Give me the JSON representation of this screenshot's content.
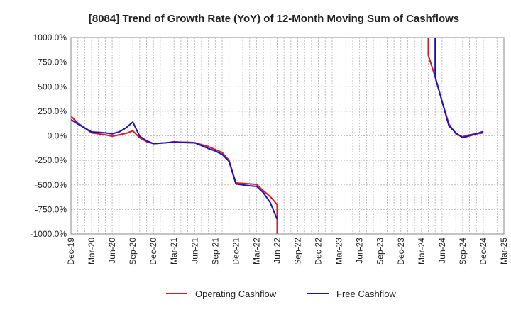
{
  "chart_data": {
    "type": "line",
    "title": "[8084]  Trend of Growth Rate (YoY) of 12-Month Moving Sum of Cashflows",
    "xlabel": "",
    "ylabel": "",
    "ylim": [
      -1000,
      1000
    ],
    "y_ticks": [
      1000,
      750,
      500,
      250,
      0,
      -250,
      -500,
      -750,
      -1000
    ],
    "y_tick_labels": [
      "1000.0%",
      "750.0%",
      "500.0%",
      "250.0%",
      "0.0%",
      "-250.0%",
      "-500.0%",
      "-750.0%",
      "-1000.0%"
    ],
    "x_tick_labels": [
      "Dec-19",
      "Mar-20",
      "Jun-20",
      "Sep-20",
      "Dec-20",
      "Mar-21",
      "Jun-21",
      "Sep-21",
      "Dec-21",
      "Mar-22",
      "Jun-22",
      "Sep-22",
      "Dec-22",
      "Mar-23",
      "Jun-23",
      "Sep-23",
      "Dec-23",
      "Mar-24",
      "Jun-24",
      "Sep-24",
      "Dec-24",
      "Mar-25"
    ],
    "grid": true,
    "legend_position": "bottom",
    "series": [
      {
        "name": "Operating Cashflow",
        "color": "#e8141c",
        "points": [
          [
            "2019-12",
            200
          ],
          [
            "2020-01",
            130
          ],
          [
            "2020-02",
            80
          ],
          [
            "2020-03",
            30
          ],
          [
            "2020-04",
            20
          ],
          [
            "2020-05",
            10
          ],
          [
            "2020-06",
            -5
          ],
          [
            "2020-07",
            10
          ],
          [
            "2020-08",
            25
          ],
          [
            "2020-09",
            50
          ],
          [
            "2020-10",
            -20
          ],
          [
            "2020-11",
            -60
          ],
          [
            "2020-12",
            -80
          ],
          [
            "2021-01",
            -75
          ],
          [
            "2021-02",
            -70
          ],
          [
            "2021-03",
            -60
          ],
          [
            "2021-04",
            -65
          ],
          [
            "2021-05",
            -65
          ],
          [
            "2021-06",
            -70
          ],
          [
            "2021-07",
            -90
          ],
          [
            "2021-08",
            -110
          ],
          [
            "2021-09",
            -140
          ],
          [
            "2021-10",
            -170
          ],
          [
            "2021-11",
            -250
          ],
          [
            "2021-12",
            -480
          ],
          [
            "2022-01",
            -485
          ],
          [
            "2022-02",
            -490
          ],
          [
            "2022-03",
            -495
          ],
          [
            "2022-04",
            -560
          ],
          [
            "2022-05",
            -620
          ],
          [
            "2022-06",
            -700
          ],
          [
            "2022-06",
            -1000
          ],
          [
            "2024-04",
            1000
          ],
          [
            "2024-04",
            820
          ],
          [
            "2024-05",
            600
          ],
          [
            "2024-06",
            350
          ],
          [
            "2024-07",
            120
          ],
          [
            "2024-08",
            20
          ],
          [
            "2024-09",
            -10
          ],
          [
            "2024-10",
            10
          ],
          [
            "2024-11",
            20
          ],
          [
            "2024-12",
            30
          ]
        ]
      },
      {
        "name": "Free Cashflow",
        "color": "#1414c8",
        "points": [
          [
            "2019-12",
            165
          ],
          [
            "2020-01",
            120
          ],
          [
            "2020-02",
            80
          ],
          [
            "2020-03",
            40
          ],
          [
            "2020-04",
            35
          ],
          [
            "2020-05",
            30
          ],
          [
            "2020-06",
            20
          ],
          [
            "2020-07",
            40
          ],
          [
            "2020-08",
            80
          ],
          [
            "2020-09",
            140
          ],
          [
            "2020-10",
            -5
          ],
          [
            "2020-11",
            -50
          ],
          [
            "2020-12",
            -80
          ],
          [
            "2021-01",
            -75
          ],
          [
            "2021-02",
            -70
          ],
          [
            "2021-03",
            -65
          ],
          [
            "2021-04",
            -68
          ],
          [
            "2021-05",
            -70
          ],
          [
            "2021-06",
            -72
          ],
          [
            "2021-07",
            -100
          ],
          [
            "2021-08",
            -130
          ],
          [
            "2021-09",
            -155
          ],
          [
            "2021-10",
            -190
          ],
          [
            "2021-11",
            -260
          ],
          [
            "2021-12",
            -490
          ],
          [
            "2022-01",
            -500
          ],
          [
            "2022-02",
            -510
          ],
          [
            "2022-03",
            -515
          ],
          [
            "2022-04",
            -580
          ],
          [
            "2022-05",
            -680
          ],
          [
            "2022-06",
            -850
          ],
          [
            "2024-05",
            1000
          ],
          [
            "2024-05",
            600
          ],
          [
            "2024-06",
            350
          ],
          [
            "2024-07",
            100
          ],
          [
            "2024-08",
            30
          ],
          [
            "2024-09",
            -20
          ],
          [
            "2024-10",
            0
          ],
          [
            "2024-11",
            20
          ],
          [
            "2024-12",
            45
          ]
        ]
      }
    ]
  }
}
